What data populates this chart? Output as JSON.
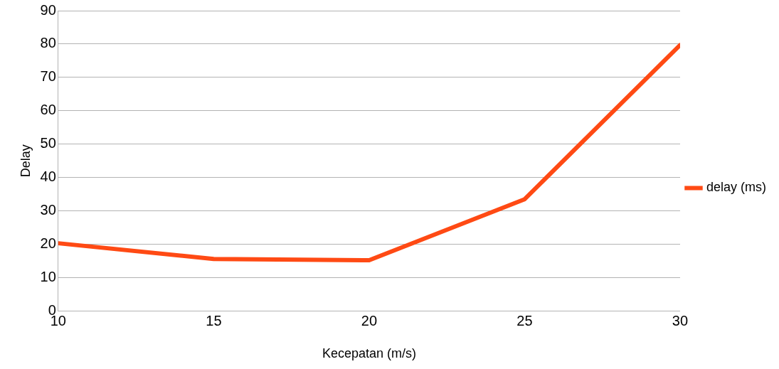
{
  "chart_data": {
    "type": "line",
    "xlabel": "Kecepatan (m/s)",
    "ylabel": "Delay",
    "x": [
      10,
      15,
      20,
      25,
      30
    ],
    "series": [
      {
        "name": "delay (ms)",
        "color": "#ff4a14",
        "values": [
          20.3,
          15.6,
          15.2,
          33.5,
          79.7
        ]
      }
    ],
    "xlim": [
      10,
      30
    ],
    "xticks": [
      10,
      15,
      20,
      25,
      30
    ],
    "ylim": [
      0,
      90
    ],
    "yticks": [
      0,
      10,
      20,
      30,
      40,
      50,
      60,
      70,
      80,
      90
    ],
    "grid": "y",
    "legend": "right",
    "marker": "none",
    "line_style": "solid"
  }
}
